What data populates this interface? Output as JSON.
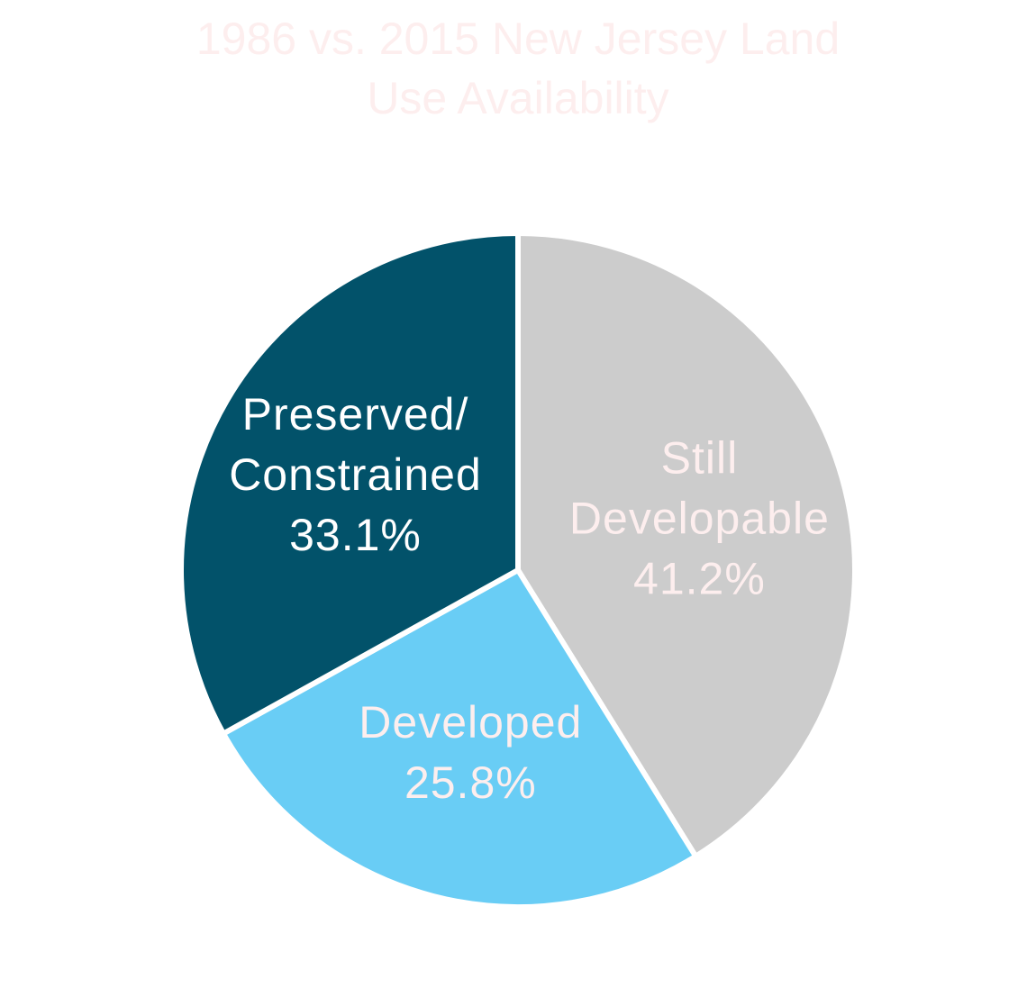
{
  "chart_data": {
    "type": "pie",
    "title_lines": [
      "1986 vs. 2015 New Jersey Land",
      "Use Availability"
    ],
    "slices": [
      {
        "name": "Still Developable",
        "label_lines": [
          "Still",
          "Developable"
        ],
        "value": 41.2,
        "value_label": "41.2%",
        "color": "#cccccc",
        "text_color": "#fdeeee"
      },
      {
        "name": "Developed",
        "label_lines": [
          "Developed"
        ],
        "value": 25.8,
        "value_label": "25.8%",
        "color": "#69cdf5",
        "text_color": "#fdeeee"
      },
      {
        "name": "Preserved/Constrained",
        "label_lines": [
          "Preserved/",
          "Constrained"
        ],
        "value": 33.1,
        "value_label": "33.1%",
        "color": "#02526a",
        "text_color": "#ffffff"
      }
    ],
    "start_angle": "top",
    "direction": "clockwise"
  }
}
